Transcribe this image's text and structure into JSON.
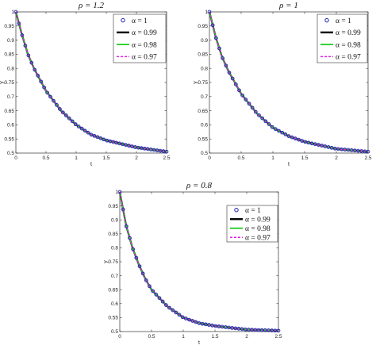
{
  "chart_data": [
    {
      "type": "line",
      "title": "ρ = 1.2",
      "xlabel": "t",
      "ylabel": "y",
      "xlim": [
        0,
        2.5
      ],
      "ylim": [
        0.5,
        1
      ],
      "x_ticks": [
        "0",
        "0.5",
        "1",
        "1.5",
        "2",
        "2.5"
      ],
      "y_ticks": [
        "0.5",
        "0.55",
        "0.6",
        "0.65",
        "0.7",
        "0.75",
        "0.8",
        "0.85",
        "0.9",
        "0.95",
        "1"
      ],
      "legend_position": "top-right",
      "grid": false,
      "x": [
        0,
        0.1,
        0.2,
        0.3,
        0.4,
        0.5,
        0.75,
        1.0,
        1.25,
        1.5,
        2.0,
        2.5
      ],
      "series": [
        {
          "name": "α = 1",
          "style": "markers",
          "color": "#1f1fb4",
          "values": [
            1.0,
            0.92,
            0.85,
            0.8,
            0.76,
            0.72,
            0.65,
            0.6,
            0.565,
            0.545,
            0.52,
            0.505
          ]
        },
        {
          "name": "α = 0.99",
          "style": "solid",
          "color": "#000000",
          "values": [
            1.0,
            0.92,
            0.85,
            0.8,
            0.76,
            0.72,
            0.65,
            0.6,
            0.565,
            0.545,
            0.52,
            0.505
          ]
        },
        {
          "name": "α = 0.98",
          "style": "solid",
          "color": "#22cc22",
          "values": [
            1.0,
            0.92,
            0.85,
            0.8,
            0.76,
            0.72,
            0.65,
            0.6,
            0.565,
            0.545,
            0.52,
            0.505
          ]
        },
        {
          "name": "α = 0.97",
          "style": "dashed",
          "color": "#e020e0",
          "values": [
            1.0,
            0.92,
            0.85,
            0.8,
            0.76,
            0.72,
            0.65,
            0.6,
            0.565,
            0.545,
            0.52,
            0.505
          ]
        }
      ]
    },
    {
      "type": "line",
      "title": "ρ = 1",
      "xlabel": "t",
      "ylabel": "y",
      "xlim": [
        0,
        2.5
      ],
      "ylim": [
        0.5,
        1
      ],
      "x_ticks": [
        "0",
        "0.5",
        "1",
        "1.5",
        "2",
        "2.5"
      ],
      "y_ticks": [
        "0.5",
        "0.55",
        "0.6",
        "0.65",
        "0.7",
        "0.75",
        "0.8",
        "0.85",
        "0.9",
        "0.95",
        "1"
      ],
      "legend_position": "top-right",
      "grid": false,
      "x": [
        0,
        0.1,
        0.2,
        0.3,
        0.4,
        0.5,
        0.75,
        1.0,
        1.25,
        1.5,
        2.0,
        2.5
      ],
      "series": [
        {
          "name": "α = 1",
          "style": "markers",
          "color": "#1f1fb4",
          "values": [
            1.0,
            0.91,
            0.84,
            0.79,
            0.75,
            0.71,
            0.64,
            0.59,
            0.56,
            0.54,
            0.515,
            0.505
          ]
        },
        {
          "name": "α = 0.99",
          "style": "solid",
          "color": "#000000",
          "values": [
            1.0,
            0.91,
            0.84,
            0.79,
            0.75,
            0.71,
            0.64,
            0.59,
            0.56,
            0.54,
            0.515,
            0.505
          ]
        },
        {
          "name": "α = 0.98",
          "style": "solid",
          "color": "#22cc22",
          "values": [
            1.0,
            0.91,
            0.84,
            0.79,
            0.75,
            0.71,
            0.64,
            0.59,
            0.56,
            0.54,
            0.515,
            0.505
          ]
        },
        {
          "name": "α = 0.97",
          "style": "dashed",
          "color": "#e020e0",
          "values": [
            1.0,
            0.91,
            0.84,
            0.79,
            0.75,
            0.71,
            0.64,
            0.59,
            0.56,
            0.54,
            0.515,
            0.505
          ]
        }
      ]
    },
    {
      "type": "line",
      "title": "ρ = 0.8",
      "xlabel": "t",
      "ylabel": "y",
      "xlim": [
        0,
        2.5
      ],
      "ylim": [
        0.5,
        1
      ],
      "x_ticks": [
        "0",
        "0.5",
        "1",
        "1.5",
        "2",
        "2.5"
      ],
      "y_ticks": [
        "0.5",
        "0.55",
        "0.6",
        "0.65",
        "0.7",
        "0.75",
        "0.8",
        "0.85",
        "0.9",
        "0.95",
        "1"
      ],
      "legend_position": "top-right",
      "grid": false,
      "x": [
        0,
        0.1,
        0.2,
        0.3,
        0.4,
        0.5,
        0.75,
        1.0,
        1.25,
        1.5,
        2.0,
        2.5
      ],
      "series": [
        {
          "name": "α = 1",
          "style": "markers",
          "color": "#1f1fb4",
          "values": [
            1.0,
            0.88,
            0.8,
            0.74,
            0.69,
            0.65,
            0.59,
            0.55,
            0.53,
            0.52,
            0.507,
            0.503
          ]
        },
        {
          "name": "α = 0.99",
          "style": "solid",
          "color": "#000000",
          "values": [
            1.0,
            0.88,
            0.8,
            0.74,
            0.69,
            0.65,
            0.59,
            0.55,
            0.53,
            0.52,
            0.507,
            0.503
          ]
        },
        {
          "name": "α = 0.98",
          "style": "solid",
          "color": "#22cc22",
          "values": [
            1.0,
            0.88,
            0.8,
            0.74,
            0.69,
            0.65,
            0.59,
            0.55,
            0.53,
            0.52,
            0.507,
            0.503
          ]
        },
        {
          "name": "α = 0.97",
          "style": "dashed",
          "color": "#e020e0",
          "values": [
            1.0,
            0.88,
            0.8,
            0.74,
            0.69,
            0.65,
            0.59,
            0.55,
            0.53,
            0.52,
            0.507,
            0.503
          ]
        }
      ]
    }
  ]
}
